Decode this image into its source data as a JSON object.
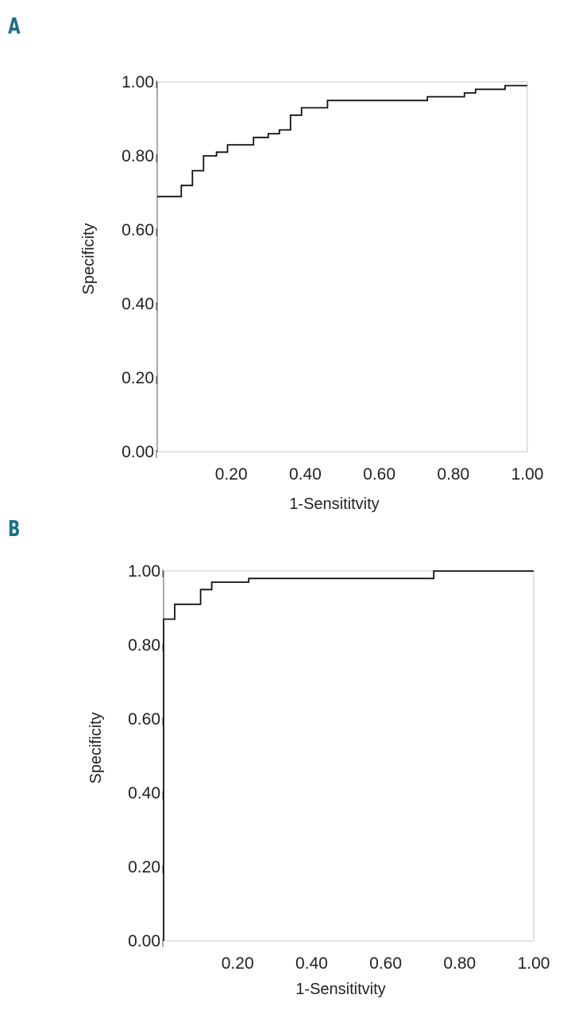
{
  "panels": [
    {
      "label": "A"
    },
    {
      "label": "B"
    }
  ],
  "colors": {
    "panel_label": "#1b6f8c",
    "curve": "#111111",
    "frame": "#c8c8c8",
    "text": "#222222"
  },
  "chart_data": [
    {
      "type": "line",
      "title": "",
      "xlabel": "1-Sensititvity",
      "ylabel": "Specificity",
      "xlim": [
        0,
        1
      ],
      "ylim": [
        0,
        1
      ],
      "grid": false,
      "x_ticks": [
        {
          "value": 0.2,
          "label": "0.20"
        },
        {
          "value": 0.4,
          "label": "0.40"
        },
        {
          "value": 0.6,
          "label": "0.60"
        },
        {
          "value": 0.8,
          "label": "0.80"
        },
        {
          "value": 1.0,
          "label": "1.00"
        }
      ],
      "y_ticks": [
        {
          "value": 0.0,
          "label": "0.00"
        },
        {
          "value": 0.2,
          "label": "0.20"
        },
        {
          "value": 0.4,
          "label": "0.40"
        },
        {
          "value": 0.6,
          "label": "0.60"
        },
        {
          "value": 0.8,
          "label": "0.80"
        },
        {
          "value": 1.0,
          "label": "1.00"
        }
      ],
      "series": [
        {
          "step": true,
          "points": [
            [
              0.0,
              0.69
            ],
            [
              0.065,
              0.69
            ],
            [
              0.065,
              0.72
            ],
            [
              0.095,
              0.72
            ],
            [
              0.095,
              0.76
            ],
            [
              0.125,
              0.76
            ],
            [
              0.125,
              0.8
            ],
            [
              0.16,
              0.8
            ],
            [
              0.16,
              0.81
            ],
            [
              0.19,
              0.81
            ],
            [
              0.19,
              0.83
            ],
            [
              0.26,
              0.83
            ],
            [
              0.26,
              0.85
            ],
            [
              0.3,
              0.85
            ],
            [
              0.3,
              0.86
            ],
            [
              0.33,
              0.86
            ],
            [
              0.33,
              0.87
            ],
            [
              0.36,
              0.87
            ],
            [
              0.36,
              0.91
            ],
            [
              0.39,
              0.91
            ],
            [
              0.39,
              0.93
            ],
            [
              0.46,
              0.93
            ],
            [
              0.46,
              0.95
            ],
            [
              0.73,
              0.95
            ],
            [
              0.73,
              0.96
            ],
            [
              0.83,
              0.96
            ],
            [
              0.83,
              0.97
            ],
            [
              0.86,
              0.97
            ],
            [
              0.86,
              0.98
            ],
            [
              0.94,
              0.98
            ],
            [
              0.94,
              0.99
            ],
            [
              1.0,
              0.99
            ]
          ]
        }
      ]
    },
    {
      "type": "line",
      "title": "",
      "xlabel": "1-Sensititvity",
      "ylabel": "Specificity",
      "xlim": [
        0,
        1
      ],
      "ylim": [
        0,
        1
      ],
      "grid": false,
      "x_ticks": [
        {
          "value": 0.2,
          "label": "0.20"
        },
        {
          "value": 0.4,
          "label": "0.40"
        },
        {
          "value": 0.6,
          "label": "0.60"
        },
        {
          "value": 0.8,
          "label": "0.80"
        },
        {
          "value": 1.0,
          "label": "1.00"
        }
      ],
      "y_ticks": [
        {
          "value": 0.0,
          "label": "0.00"
        },
        {
          "value": 0.2,
          "label": "0.20"
        },
        {
          "value": 0.4,
          "label": "0.40"
        },
        {
          "value": 0.6,
          "label": "0.60"
        },
        {
          "value": 0.8,
          "label": "0.80"
        },
        {
          "value": 1.0,
          "label": "1.00"
        }
      ],
      "series": [
        {
          "step": true,
          "points": [
            [
              0.0,
              0.0
            ],
            [
              0.0,
              0.87
            ],
            [
              0.03,
              0.87
            ],
            [
              0.03,
              0.91
            ],
            [
              0.1,
              0.91
            ],
            [
              0.1,
              0.95
            ],
            [
              0.13,
              0.95
            ],
            [
              0.13,
              0.97
            ],
            [
              0.23,
              0.97
            ],
            [
              0.23,
              0.98
            ],
            [
              0.73,
              0.98
            ],
            [
              0.73,
              1.0
            ],
            [
              1.0,
              1.0
            ]
          ]
        }
      ]
    }
  ]
}
